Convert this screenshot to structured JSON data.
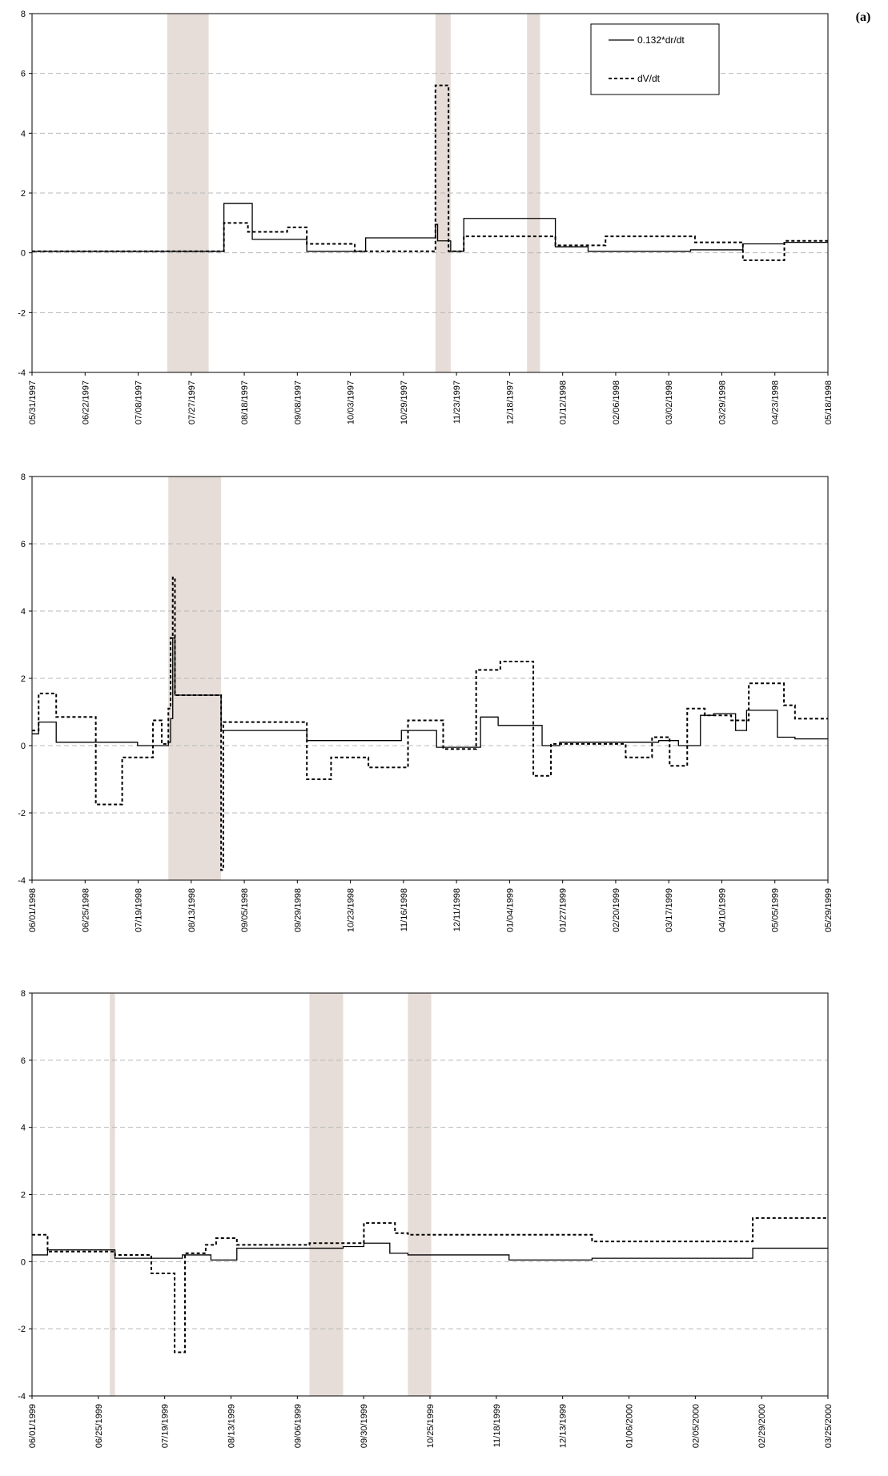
{
  "figure": {
    "panel_label": "(a)",
    "legend": {
      "solid_label": "0.132*dr/dt",
      "dashed_label": "dV/dt"
    }
  },
  "chart_data": [
    {
      "type": "line",
      "ylim": [
        -4,
        8
      ],
      "yticks": [
        "-4",
        "-2",
        "0",
        "2",
        "4",
        "6",
        "8"
      ],
      "x_tick_labels": [
        "05/31/1997",
        "06/22/1997",
        "07/08/1997",
        "07/27/1997",
        "08/18/1997",
        "09/08/1997",
        "10/03/1997",
        "10/29/1997",
        "11/23/1997",
        "12/18/1997",
        "01/12/1998",
        "02/06/1998",
        "03/02/1998",
        "03/29/1998",
        "04/23/1998",
        "05/18/1998"
      ],
      "x_range_days": [
        0,
        365
      ],
      "grid": "horizontal dashed",
      "legend_position": "top-right",
      "gaps": [
        [
          62,
          81
        ],
        [
          185,
          192
        ],
        [
          227,
          233
        ]
      ],
      "series": [
        {
          "name": "0.132*dr/dt",
          "style": "solid",
          "steps": [
            [
              0,
              0.05
            ],
            [
              62,
              0.05
            ],
            [
              88,
              1.65
            ],
            [
              101,
              0.45
            ],
            [
              126,
              0.05
            ],
            [
              153,
              0.5
            ],
            [
              185,
              0.95
            ],
            [
              186,
              0.4
            ],
            [
              192,
              0.05
            ],
            [
              198,
              1.15
            ],
            [
              240,
              0.2
            ],
            [
              255,
              0.05
            ],
            [
              302,
              0.1
            ],
            [
              326,
              0.3
            ],
            [
              345,
              0.35
            ],
            [
              365,
              0.35
            ]
          ]
        },
        {
          "name": "dV/dt",
          "style": "dashed",
          "steps": [
            [
              0,
              0.05
            ],
            [
              62,
              0.05
            ],
            [
              88,
              1.0
            ],
            [
              99,
              0.7
            ],
            [
              117,
              0.85
            ],
            [
              126,
              0.3
            ],
            [
              148,
              0.05
            ],
            [
              185,
              5.6
            ],
            [
              191,
              0.05
            ],
            [
              198,
              0.55
            ],
            [
              240,
              0.25
            ],
            [
              263,
              0.55
            ],
            [
              304,
              0.35
            ],
            [
              326,
              -0.25
            ],
            [
              345,
              0.4
            ],
            [
              365,
              0.4
            ]
          ]
        }
      ]
    },
    {
      "type": "line",
      "ylim": [
        -4,
        8
      ],
      "yticks": [
        "-4",
        "-2",
        "0",
        "2",
        "4",
        "6",
        "8"
      ],
      "x_tick_labels": [
        "06/01/1998",
        "06/25/1998",
        "07/19/1998",
        "08/13/1998",
        "09/05/1998",
        "09/29/1998",
        "10/23/1998",
        "11/16/1998",
        "12/11/1998",
        "01/04/1999",
        "01/27/1999",
        "02/20/1999",
        "03/17/1999",
        "04/10/1999",
        "05/05/1999",
        "05/29/1999"
      ],
      "x_range_days": [
        0,
        362
      ],
      "grid": "horizontal dashed",
      "gaps": [
        [
          62,
          86
        ]
      ],
      "series": [
        {
          "name": "",
          "style": "solid",
          "steps": [
            [
              0,
              0.35
            ],
            [
              3,
              0.7
            ],
            [
              11,
              0.1
            ],
            [
              30,
              0.1
            ],
            [
              48,
              0.0
            ],
            [
              62,
              0.1
            ],
            [
              63,
              0.8
            ],
            [
              64,
              3.2
            ],
            [
              65,
              1.5
            ],
            [
              86,
              0.45
            ],
            [
              125,
              0.15
            ],
            [
              168,
              0.45
            ],
            [
              184,
              -0.05
            ],
            [
              204,
              0.85
            ],
            [
              212,
              0.6
            ],
            [
              232,
              0.0
            ],
            [
              240,
              0.1
            ],
            [
              285,
              0.15
            ],
            [
              294,
              0.0
            ],
            [
              304,
              0.9
            ],
            [
              310,
              0.95
            ],
            [
              320,
              0.45
            ],
            [
              325,
              1.05
            ],
            [
              339,
              0.25
            ],
            [
              347,
              0.2
            ],
            [
              362,
              0.2
            ]
          ]
        },
        {
          "name": "",
          "style": "dashed",
          "steps": [
            [
              0,
              0.45
            ],
            [
              3,
              1.55
            ],
            [
              11,
              0.85
            ],
            [
              29,
              -1.75
            ],
            [
              41,
              -0.35
            ],
            [
              55,
              0.75
            ],
            [
              59,
              0.05
            ],
            [
              62,
              1.1
            ],
            [
              63,
              3.2
            ],
            [
              64,
              5.0
            ],
            [
              65,
              1.5
            ],
            [
              86,
              -3.7
            ],
            [
              87,
              0.7
            ],
            [
              125,
              -1.0
            ],
            [
              136,
              -0.35
            ],
            [
              153,
              -0.65
            ],
            [
              171,
              0.75
            ],
            [
              187,
              -0.1
            ],
            [
              202,
              2.25
            ],
            [
              213,
              2.5
            ],
            [
              228,
              -0.9
            ],
            [
              236,
              0.05
            ],
            [
              270,
              -0.35
            ],
            [
              282,
              0.25
            ],
            [
              290,
              -0.6
            ],
            [
              298,
              1.1
            ],
            [
              306,
              0.9
            ],
            [
              318,
              0.75
            ],
            [
              326,
              1.85
            ],
            [
              342,
              1.2
            ],
            [
              347,
              0.8
            ],
            [
              362,
              0.8
            ]
          ]
        }
      ]
    },
    {
      "type": "line",
      "ylim": [
        -4,
        8
      ],
      "yticks": [
        "-4",
        "-2",
        "0",
        "2",
        "4",
        "6",
        "8"
      ],
      "x_tick_labels": [
        "06/01/1999",
        "06/25/1999",
        "07/19/1999",
        "08/13/1999",
        "09/06/1999",
        "09/30/1999",
        "10/25/1999",
        "11/18/1999",
        "12/13/1999",
        "01/06/2000",
        "02/05/2000",
        "02/29/2000",
        "03/25/2000"
      ],
      "x_range_days": [
        0,
        307
      ],
      "grid": "horizontal dashed",
      "gaps": [
        [
          30,
          32
        ],
        [
          107,
          120
        ],
        [
          145,
          154
        ]
      ],
      "series": [
        {
          "name": "",
          "style": "solid",
          "steps": [
            [
              0,
              0.2
            ],
            [
              6,
              0.35
            ],
            [
              30,
              0.35
            ],
            [
              32,
              0.1
            ],
            [
              46,
              0.1
            ],
            [
              58,
              0.2
            ],
            [
              69,
              0.05
            ],
            [
              79,
              0.4
            ],
            [
              107,
              0.4
            ],
            [
              120,
              0.45
            ],
            [
              128,
              0.55
            ],
            [
              138,
              0.25
            ],
            [
              145,
              0.2
            ],
            [
              154,
              0.2
            ],
            [
              184,
              0.05
            ],
            [
              216,
              0.1
            ],
            [
              278,
              0.4
            ],
            [
              307,
              0.4
            ]
          ]
        },
        {
          "name": "",
          "style": "dashed",
          "steps": [
            [
              0,
              0.8
            ],
            [
              6,
              0.3
            ],
            [
              30,
              0.3
            ],
            [
              32,
              0.2
            ],
            [
              46,
              -0.35
            ],
            [
              55,
              -2.7
            ],
            [
              59,
              0.25
            ],
            [
              67,
              0.5
            ],
            [
              71,
              0.7
            ],
            [
              79,
              0.5
            ],
            [
              107,
              0.55
            ],
            [
              120,
              0.55
            ],
            [
              128,
              1.15
            ],
            [
              140,
              0.85
            ],
            [
              145,
              0.8
            ],
            [
              154,
              0.8
            ],
            [
              184,
              0.8
            ],
            [
              216,
              0.6
            ],
            [
              278,
              1.3
            ],
            [
              307,
              1.3
            ]
          ]
        }
      ]
    }
  ]
}
